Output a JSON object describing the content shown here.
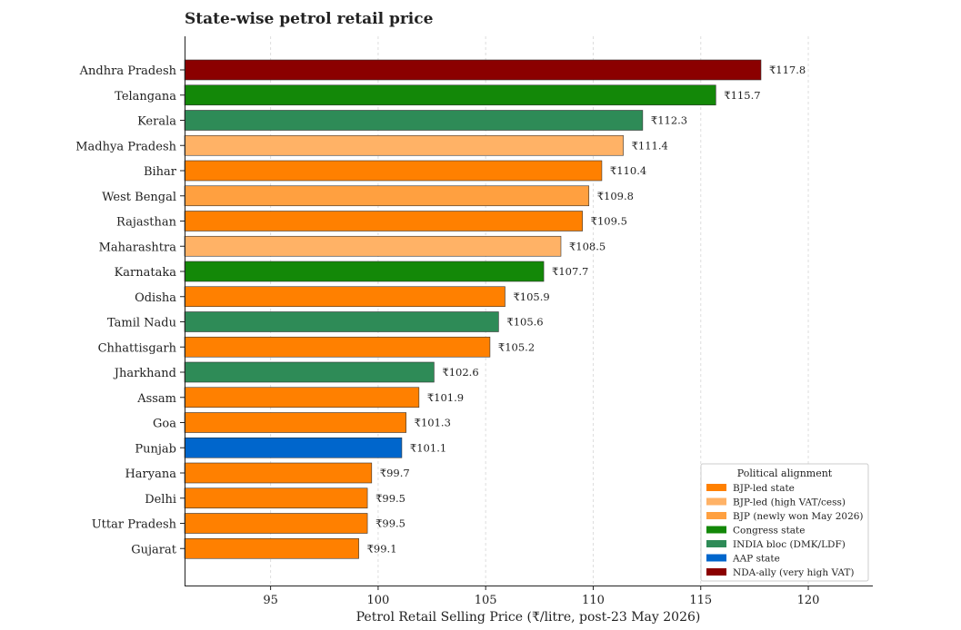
{
  "chart_data": {
    "type": "bar",
    "orientation": "horizontal",
    "title": "State-wise petrol retail price",
    "xlabel": "Petrol Retail Selling Price (₹/litre, post-23 May 2026)",
    "ylabel": "",
    "xlim": [
      91,
      123
    ],
    "xticks": [
      95,
      100,
      105,
      110,
      115,
      120
    ],
    "grid": "vertical dashed",
    "value_prefix": "₹",
    "categories": [
      "Andhra Pradesh",
      "Telangana",
      "Kerala",
      "Madhya Pradesh",
      "Bihar",
      "West Bengal",
      "Rajasthan",
      "Maharashtra",
      "Karnataka",
      "Odisha",
      "Tamil Nadu",
      "Chhattisgarh",
      "Jharkhand",
      "Assam",
      "Goa",
      "Punjab",
      "Haryana",
      "Delhi",
      "Uttar Pradesh",
      "Gujarat"
    ],
    "values": [
      117.8,
      115.7,
      112.3,
      111.4,
      110.4,
      109.8,
      109.5,
      108.5,
      107.7,
      105.9,
      105.6,
      105.2,
      102.6,
      101.9,
      101.3,
      101.1,
      99.7,
      99.5,
      99.5,
      99.1
    ],
    "groups": [
      "nda",
      "congress",
      "india",
      "bjp_high",
      "bjp",
      "bjp_new",
      "bjp",
      "bjp_high",
      "congress",
      "bjp",
      "india",
      "bjp",
      "india",
      "bjp",
      "bjp",
      "aap",
      "bjp",
      "bjp",
      "bjp",
      "bjp"
    ],
    "legend": {
      "title": "Political alignment",
      "position": "bottom-right",
      "entries": [
        {
          "key": "bjp",
          "label": "BJP-led state",
          "color": "#FF8000"
        },
        {
          "key": "bjp_high",
          "label": "BJP-led (high VAT/cess)",
          "color": "#FFB266"
        },
        {
          "key": "bjp_new",
          "label": "BJP (newly won May 2026)",
          "color": "#FFA040"
        },
        {
          "key": "congress",
          "label": "Congress state",
          "color": "#138808"
        },
        {
          "key": "india",
          "label": "INDIA bloc (DMK/LDF)",
          "color": "#2E8B57"
        },
        {
          "key": "aap",
          "label": "AAP state",
          "color": "#0066CC"
        },
        {
          "key": "nda",
          "label": "NDA-ally (very high VAT)",
          "color": "#8B0000"
        }
      ]
    }
  }
}
